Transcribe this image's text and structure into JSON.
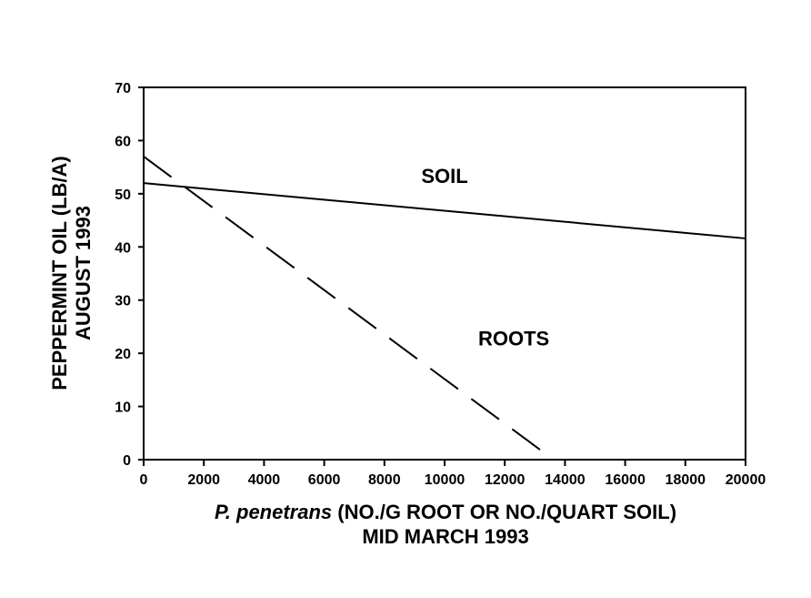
{
  "chart_data": {
    "type": "line",
    "title": "",
    "xlabel_italic": "P. penetrans",
    "xlabel_rest": " (NO./G ROOT OR NO./QUART SOIL)",
    "xlabel_line2": "MID MARCH 1993",
    "ylabel_line1": "PEPPERMINT OIL (LB/A)",
    "ylabel_line2": "AUGUST 1993",
    "xlim": [
      0,
      20000
    ],
    "ylim": [
      0,
      70
    ],
    "xticks": [
      0,
      2000,
      4000,
      6000,
      8000,
      10000,
      12000,
      14000,
      16000,
      18000,
      20000
    ],
    "yticks": [
      0,
      10,
      20,
      30,
      40,
      50,
      60,
      70
    ],
    "grid": false,
    "series": [
      {
        "name": "SOIL",
        "style": "solid",
        "x": [
          0,
          20000
        ],
        "y": [
          52,
          41.6
        ],
        "label_at": [
          10000,
          52
        ]
      },
      {
        "name": "ROOTS",
        "style": "dashed",
        "x": [
          0,
          13620
        ],
        "y": [
          57,
          0
        ],
        "label_at": [
          12300,
          21.5
        ]
      }
    ]
  }
}
